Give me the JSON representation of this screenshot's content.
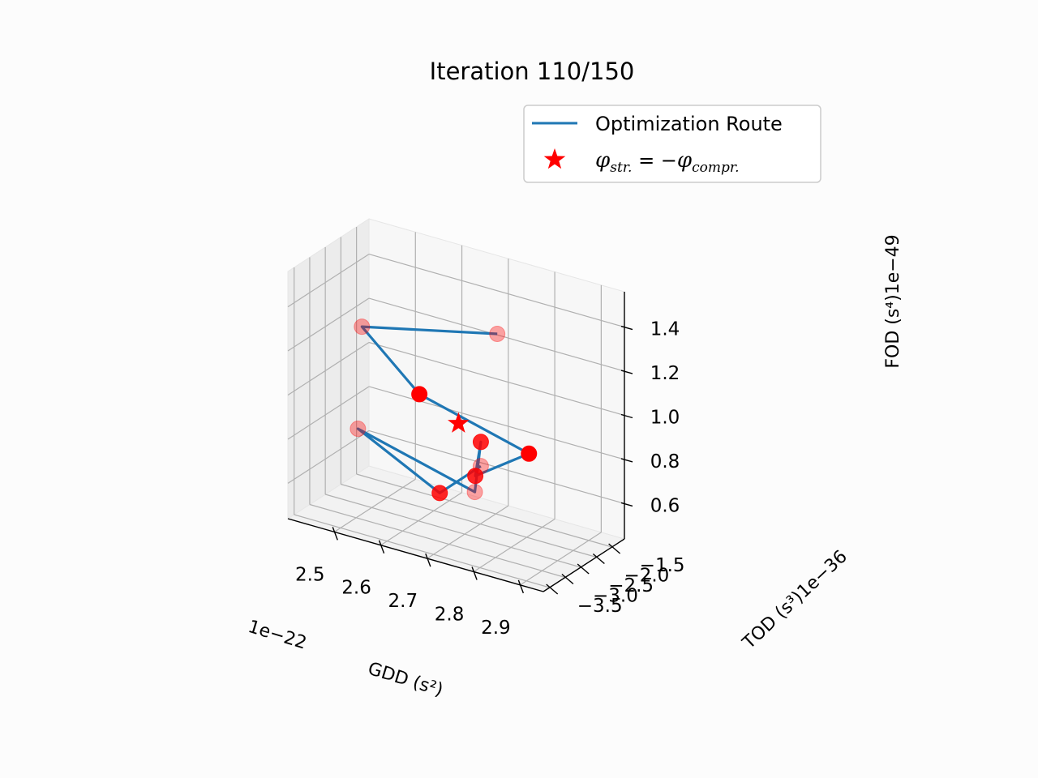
{
  "chart_data": {
    "type": "scatter",
    "title": "Iteration 110/150",
    "xlabel": "GDD (s²)",
    "ylabel": "TOD (s³)1e−36",
    "zlabel": "FOD (s⁴)1e−49",
    "x_offset_label": "1e−22",
    "x_ticks": [
      "2.5",
      "2.6",
      "2.7",
      "2.8",
      "2.9"
    ],
    "y_ticks": [
      "−1.5",
      "−2.0",
      "−2.5",
      "−3.0",
      "−3.5"
    ],
    "z_ticks": [
      "1.4",
      "1.2",
      "1.0",
      "0.8",
      "0.6"
    ],
    "grid": true,
    "legend_position": "top-right",
    "legend": {
      "route_label": "Optimization Route",
      "target_label": "φstr. = −φcompr."
    },
    "colors": {
      "route": "#1f77b4",
      "points": "#ff0000",
      "pane": "#f2f2f2",
      "grid": "#b0b0b0"
    },
    "route_points": [
      {
        "gdd": 2.74,
        "tod": -2.05,
        "fod": 1.33,
        "alpha": 0.35
      },
      {
        "gdd": 2.46,
        "tod": -2.22,
        "fod": 1.21,
        "alpha": 0.35
      },
      {
        "gdd": 2.62,
        "tod": -2.76,
        "fod": 1.05,
        "alpha": 1.0
      },
      {
        "gdd": 2.87,
        "tod": -2.97,
        "fod": 0.95,
        "alpha": 1.0
      },
      {
        "gdd": 2.78,
        "tod": -3.35,
        "fod": 0.83,
        "alpha": 0.85
      },
      {
        "gdd": 2.71,
        "tod": -2.13,
        "fod": 0.83,
        "alpha": 0.85
      },
      {
        "gdd": 2.73,
        "tod": -2.62,
        "fod": 0.66,
        "alpha": 0.35
      },
      {
        "gdd": 2.44,
        "tod": -2.05,
        "fod": 0.72,
        "alpha": 0.35
      },
      {
        "gdd": 2.69,
        "tod": -3.15,
        "fod": 0.68,
        "alpha": 0.85
      },
      {
        "gdd": 2.72,
        "tod": -2.28,
        "fod": 0.74,
        "alpha": 0.35
      }
    ],
    "target_point": {
      "gdd": 2.68,
      "tod": -2.4,
      "fod": 0.92
    }
  }
}
